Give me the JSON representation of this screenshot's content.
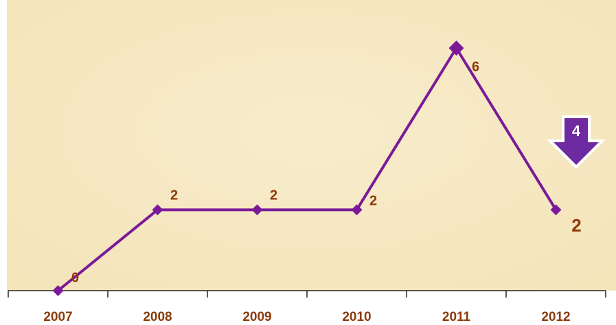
{
  "chart_data": {
    "type": "line",
    "categories": [
      "2007",
      "2008",
      "2009",
      "2010",
      "2011",
      "2012"
    ],
    "series": [
      {
        "color": "#7b1a98",
        "values": [
          0,
          2,
          2,
          2,
          6,
          2
        ]
      }
    ],
    "annotations": [
      {
        "text": "4"
      }
    ]
  }
}
